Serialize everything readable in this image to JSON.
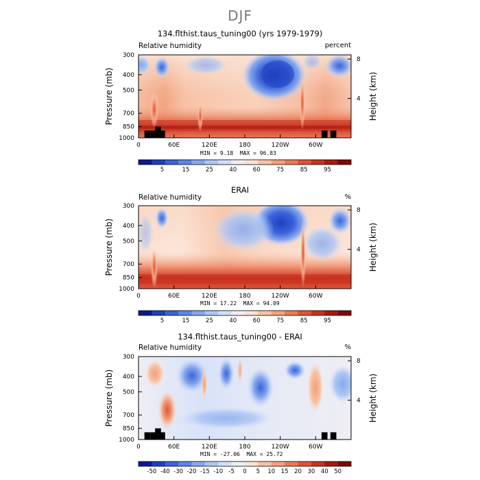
{
  "page": {
    "title": "DJF"
  },
  "chart_data": [
    {
      "type": "heatmap",
      "title": "134.flthist.taus_tuning00 (yrs 1979-1979)",
      "variable": "Relative humidity",
      "units": "percent",
      "ylabel_left": "Pressure (mb)",
      "ylabel_right": "Height (km)",
      "x_ticks": [
        "0",
        "60E",
        "120E",
        "180",
        "120W",
        "60W"
      ],
      "x_range": [
        0,
        360
      ],
      "y_ticks": [
        300,
        400,
        500,
        700,
        850,
        1000
      ],
      "y_range": [
        300,
        1000
      ],
      "height_ticks": [
        4,
        8
      ],
      "stats": {
        "min_label": "MIN =",
        "min": "9.18",
        "max_label": "MAX =",
        "max": "96.83"
      },
      "colorbar": {
        "labels": [
          "5",
          "15",
          "25",
          "40",
          "60",
          "75",
          "85",
          "95"
        ],
        "colors": [
          "#0d1a8c",
          "#1f3fc0",
          "#3a63d8",
          "#5d86e6",
          "#86a8ef",
          "#adc6f3",
          "#d1defa",
          "#eeeef4",
          "#fbe1d2",
          "#f8c2a4",
          "#f2a07c",
          "#ea7a58",
          "#de5436",
          "#c83220",
          "#a61a12",
          "#7c0a08"
        ]
      },
      "topography": [
        [
          15,
          1000,
          900
        ],
        [
          25,
          1000,
          900
        ],
        [
          33,
          1000,
          850
        ],
        [
          40,
          1000,
          900
        ],
        [
          315,
          1000,
          900
        ],
        [
          330,
          1000,
          900
        ]
      ]
    },
    {
      "type": "heatmap",
      "title": "ERAI",
      "variable": "Relative humidity",
      "units": "%",
      "ylabel_left": "Pressure (mb)",
      "ylabel_right": "Height (km)",
      "x_ticks": [
        "0",
        "60E",
        "120E",
        "180",
        "120W",
        "60W"
      ],
      "x_range": [
        0,
        360
      ],
      "y_ticks": [
        300,
        400,
        500,
        700,
        850,
        1000
      ],
      "y_range": [
        300,
        1000
      ],
      "height_ticks": [
        4,
        8
      ],
      "stats": {
        "min_label": "MIN =",
        "min": "17.22",
        "max_label": "MAX =",
        "max": "94.09"
      },
      "colorbar": {
        "labels": [
          "5",
          "15",
          "25",
          "40",
          "60",
          "75",
          "85",
          "95"
        ],
        "colors": [
          "#0d1a8c",
          "#1f3fc0",
          "#3a63d8",
          "#5d86e6",
          "#86a8ef",
          "#adc6f3",
          "#d1defa",
          "#eeeef4",
          "#fbe1d2",
          "#f8c2a4",
          "#f2a07c",
          "#ea7a58",
          "#de5436",
          "#c83220",
          "#a61a12",
          "#7c0a08"
        ]
      },
      "topography": []
    },
    {
      "type": "heatmap",
      "title": "134.flthist.taus_tuning00 - ERAI",
      "variable": "Relative humidity",
      "units": "%",
      "ylabel_left": "Pressure (mb)",
      "ylabel_right": "Height (km)",
      "x_ticks": [
        "0",
        "60E",
        "120E",
        "180",
        "120W",
        "60W"
      ],
      "x_range": [
        0,
        360
      ],
      "y_ticks": [
        300,
        400,
        500,
        700,
        850,
        1000
      ],
      "y_range": [
        300,
        1000
      ],
      "height_ticks": [
        4,
        8
      ],
      "stats": {
        "min_label": "MIN =",
        "min": "-27.06",
        "max_label": "MAX =",
        "max": "25.72"
      },
      "colorbar": {
        "labels": [
          "-50",
          "-40",
          "-30",
          "-20",
          "-15",
          "-10",
          "-5",
          "0",
          "5",
          "10",
          "15",
          "20",
          "30",
          "40",
          "50"
        ],
        "colors": [
          "#0d1a8c",
          "#1f3fc0",
          "#3a63d8",
          "#5d86e6",
          "#86a8ef",
          "#adc6f3",
          "#d1defa",
          "#eeeef4",
          "#fbe1d2",
          "#f8c2a4",
          "#f2a07c",
          "#ea7a58",
          "#de5436",
          "#c83220",
          "#a61a12",
          "#7c0a08"
        ]
      },
      "topography": [
        [
          15,
          1000,
          900
        ],
        [
          25,
          1000,
          900
        ],
        [
          33,
          1000,
          850
        ],
        [
          40,
          1000,
          900
        ],
        [
          315,
          1000,
          900
        ],
        [
          330,
          1000,
          900
        ]
      ]
    }
  ]
}
